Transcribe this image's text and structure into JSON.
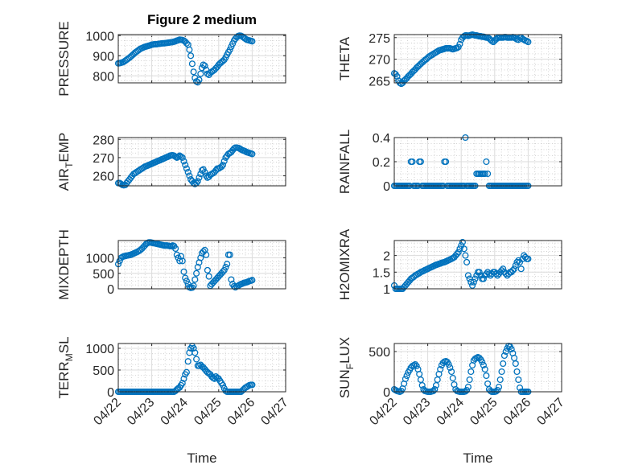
{
  "figure": {
    "title": "Figure 2 medium",
    "marker_color": "#0072BD"
  },
  "x_axis": {
    "label": "Time",
    "tick_labels": [
      "04/22",
      "04/23",
      "04/24",
      "04/25",
      "04/26",
      "04/27"
    ],
    "xlim_days": [
      0,
      5
    ],
    "time_step_hours": 1
  },
  "chart_data": [
    {
      "type": "scatter",
      "ylabel": "PRESSURE",
      "ylim": [
        765,
        1005
      ],
      "yticks": [
        800,
        900,
        1000
      ],
      "ytick_labels": [
        "800",
        "900",
        "1000"
      ],
      "values": [
        862,
        863,
        865,
        867,
        870,
        875,
        880,
        885,
        890,
        896,
        902,
        908,
        915,
        920,
        925,
        930,
        935,
        938,
        941,
        944,
        946,
        948,
        950,
        952,
        955,
        956,
        957,
        957,
        958,
        959,
        960,
        961,
        962,
        962,
        963,
        964,
        965,
        966,
        967,
        968,
        970,
        972,
        975,
        977,
        980,
        979,
        978,
        975,
        970,
        962,
        955,
        930,
        900,
        860,
        820,
        790,
        772,
        768,
        780,
        810,
        840,
        855,
        850,
        830,
        810,
        805,
        815,
        820,
        825,
        830,
        838,
        845,
        855,
        862,
        868,
        874,
        880,
        892,
        905,
        918,
        930,
        945,
        960,
        975,
        985,
        992,
        998,
        1000,
        999,
        995,
        990,
        985,
        980,
        978,
        976,
        974,
        972
      ]
    },
    {
      "type": "scatter",
      "ylabel": "THETA",
      "ylim": [
        264.5,
        275.7
      ],
      "yticks": [
        265,
        270,
        275
      ],
      "ytick_labels": [
        "265",
        "270",
        "275"
      ],
      "values": [
        266.7,
        266.5,
        266,
        265,
        264.5,
        264.3,
        264.5,
        265,
        265.3,
        265.6,
        266,
        266.3,
        266.6,
        267,
        267.3,
        267.6,
        268,
        268.3,
        268.6,
        268.9,
        269.2,
        269.5,
        269.8,
        270,
        270.3,
        270.6,
        270.8,
        271,
        271.2,
        271.4,
        271.6,
        271.8,
        272,
        272.1,
        272.2,
        272.3,
        272.4,
        272.5,
        272.5,
        272.5,
        272.5,
        272.4,
        272.3,
        272.4,
        272.5,
        272.6,
        272.8,
        273.5,
        274.5,
        275,
        275.3,
        275.5,
        275.5,
        275.4,
        275.5,
        275.6,
        275.7,
        275.6,
        275.5,
        275.5,
        275.4,
        275.3,
        275.3,
        275.2,
        275.2,
        275.1,
        275,
        275,
        274.8,
        274.5,
        274.2,
        274,
        274.3,
        274.6,
        274.9,
        275,
        275,
        275,
        275,
        275.1,
        275.1,
        275,
        275,
        275,
        275,
        275.1,
        275,
        274.8,
        274.6,
        274.5,
        275,
        275,
        274.7,
        274.5,
        274.3,
        274.2,
        274
      ]
    },
    {
      "type": "scatter",
      "ylabel": "AIR_TEMP",
      "ylim": [
        254.5,
        281
      ],
      "yticks": [
        260,
        270,
        280
      ],
      "ytick_labels": [
        "260",
        "270",
        "280"
      ],
      "values": [
        256,
        256,
        255.5,
        255,
        254.8,
        255,
        256,
        257,
        258,
        259,
        260,
        261,
        261.5,
        262,
        262.5,
        263,
        263.5,
        264,
        264.5,
        265,
        265.3,
        265.6,
        266,
        266.3,
        266.6,
        267,
        267.3,
        267.6,
        268,
        268.3,
        268.6,
        269,
        269.3,
        269.6,
        270,
        270.3,
        270.6,
        271,
        271.2,
        271.3,
        271,
        270.5,
        270,
        270.5,
        271,
        270.5,
        270,
        268,
        266,
        264,
        262,
        260,
        258,
        257,
        256,
        255.5,
        256,
        257,
        259,
        261,
        263,
        263.5,
        262,
        260,
        259,
        259.5,
        260.5,
        261,
        261.5,
        262,
        263,
        264,
        264,
        264.5,
        265,
        266,
        268,
        270,
        271,
        272,
        272.5,
        273,
        274,
        275,
        275.5,
        275.5,
        275.3,
        275,
        274.5,
        274,
        273.8,
        273.5,
        273,
        272.8,
        272.5,
        272.3,
        272
      ]
    },
    {
      "type": "scatter",
      "ylabel": "RAINFALL",
      "ylim": [
        0,
        0.4
      ],
      "yticks": [
        0,
        0.2,
        0.4
      ],
      "ytick_labels": [
        "0",
        "0.2",
        "0.4"
      ],
      "values": [
        0,
        0,
        0,
        0,
        0,
        0,
        0,
        0,
        0,
        0,
        0,
        0,
        0.2,
        0.2,
        0,
        0,
        0,
        0,
        0.2,
        0.2,
        0,
        0,
        0,
        0,
        0,
        0,
        0,
        0,
        0,
        0,
        0,
        0,
        0,
        0,
        0,
        0,
        0.2,
        0.2,
        0,
        0,
        0,
        0,
        0,
        0,
        0,
        0,
        0,
        0,
        0,
        0,
        0,
        0.4,
        0,
        0,
        0,
        0,
        0,
        0,
        0,
        0.1,
        0.1,
        0.1,
        0.1,
        0.1,
        0.1,
        0.1,
        0.2,
        0.1,
        0,
        0,
        0,
        0,
        0,
        0,
        0,
        0,
        0,
        0,
        0,
        0,
        0,
        0,
        0,
        0,
        0,
        0,
        0,
        0,
        0,
        0,
        0,
        0,
        0,
        0,
        0,
        0,
        0
      ]
    },
    {
      "type": "scatter",
      "ylabel": "MIXDEPTH",
      "ylim": [
        0,
        1560
      ],
      "yticks": [
        0,
        500,
        1000
      ],
      "ytick_labels": [
        "0",
        "500",
        "1000"
      ],
      "values": [
        800,
        900,
        1000,
        1030,
        1050,
        1060,
        1070,
        1080,
        1090,
        1100,
        1120,
        1140,
        1160,
        1180,
        1200,
        1230,
        1260,
        1300,
        1350,
        1400,
        1450,
        1480,
        1500,
        1500,
        1490,
        1480,
        1470,
        1460,
        1450,
        1440,
        1430,
        1420,
        1410,
        1400,
        1400,
        1400,
        1390,
        1380,
        1380,
        1400,
        1380,
        1300,
        1100,
        1000,
        900,
        1050,
        900,
        550,
        350,
        250,
        150,
        50,
        30,
        40,
        100,
        300,
        500,
        700,
        850,
        1000,
        1150,
        1200,
        1250,
        1100,
        600,
        400,
        100,
        150,
        200,
        250,
        300,
        350,
        400,
        450,
        500,
        550,
        600,
        700,
        800,
        1100,
        1100,
        300,
        150,
        80,
        50,
        80,
        100,
        130,
        150,
        170,
        190,
        200,
        210,
        230,
        250,
        260,
        280
      ]
    },
    {
      "type": "scatter",
      "ylabel": "H2OMIXRA",
      "ylim": [
        1,
        2.45
      ],
      "yticks": [
        1,
        1.5,
        2
      ],
      "ytick_labels": [
        "1",
        "1.5",
        "2"
      ],
      "values": [
        1.1,
        1.0,
        1.0,
        1.0,
        1.0,
        1.0,
        1.0,
        1.05,
        1.1,
        1.15,
        1.2,
        1.25,
        1.3,
        1.33,
        1.36,
        1.4,
        1.42,
        1.45,
        1.47,
        1.5,
        1.52,
        1.54,
        1.56,
        1.58,
        1.6,
        1.62,
        1.64,
        1.66,
        1.68,
        1.7,
        1.72,
        1.73,
        1.75,
        1.76,
        1.78,
        1.79,
        1.8,
        1.82,
        1.84,
        1.86,
        1.88,
        1.9,
        1.92,
        1.95,
        2.0,
        2.05,
        2.1,
        2.2,
        2.3,
        2.4,
        2.2,
        2.0,
        1.8,
        1.4,
        1.3,
        1.2,
        1.1,
        1.2,
        1.3,
        1.4,
        1.5,
        1.5,
        1.4,
        1.3,
        1.3,
        1.4,
        1.45,
        1.5,
        1.45,
        1.4,
        1.45,
        1.5,
        1.5,
        1.45,
        1.4,
        1.45,
        1.5,
        1.55,
        1.6,
        1.5,
        1.45,
        1.4,
        1.45,
        1.5,
        1.5,
        1.55,
        1.6,
        1.7,
        1.8,
        1.85,
        1.8,
        1.6,
        1.9,
        2.0,
        1.95,
        1.9,
        1.9
      ]
    },
    {
      "type": "scatter",
      "ylabel": "TERR_MSL",
      "ylim": [
        0,
        1110
      ],
      "yticks": [
        0,
        500,
        1000
      ],
      "ytick_labels": [
        "0",
        "500",
        "1000"
      ],
      "values": [
        0,
        0,
        0,
        0,
        0,
        0,
        0,
        0,
        0,
        0,
        0,
        0,
        0,
        0,
        0,
        0,
        0,
        0,
        0,
        0,
        0,
        0,
        0,
        0,
        0,
        0,
        0,
        0,
        0,
        0,
        0,
        0,
        0,
        0,
        0,
        0,
        0,
        0,
        0,
        0,
        0,
        20,
        50,
        80,
        100,
        150,
        200,
        300,
        400,
        450,
        700,
        900,
        1000,
        1050,
        1000,
        900,
        750,
        600,
        600,
        620,
        580,
        560,
        520,
        480,
        450,
        420,
        400,
        350,
        320,
        300,
        350,
        320,
        300,
        250,
        200,
        150,
        80,
        20,
        0,
        0,
        0,
        0,
        0,
        0,
        0,
        0,
        0,
        0,
        0,
        30,
        60,
        90,
        110,
        130,
        150,
        160,
        160
      ]
    },
    {
      "type": "scatter",
      "ylabel": "SUN_FLUX",
      "ylim": [
        0,
        600
      ],
      "yticks": [
        0,
        500
      ],
      "ytick_labels": [
        "0",
        "500"
      ],
      "values": [
        30,
        20,
        10,
        5,
        0,
        10,
        40,
        100,
        160,
        200,
        240,
        270,
        300,
        320,
        330,
        340,
        320,
        280,
        220,
        150,
        80,
        30,
        10,
        5,
        0,
        0,
        0,
        5,
        10,
        30,
        80,
        150,
        220,
        280,
        330,
        360,
        375,
        380,
        370,
        340,
        300,
        250,
        170,
        90,
        30,
        10,
        5,
        0,
        0,
        0,
        0,
        5,
        20,
        60,
        150,
        250,
        330,
        390,
        410,
        420,
        430,
        420,
        400,
        370,
        330,
        280,
        200,
        100,
        30,
        10,
        0,
        0,
        0,
        5,
        20,
        60,
        150,
        250,
        350,
        450,
        500,
        540,
        570,
        560,
        530,
        480,
        420,
        350,
        250,
        150,
        50,
        0,
        0,
        0,
        0,
        0,
        0
      ]
    }
  ]
}
